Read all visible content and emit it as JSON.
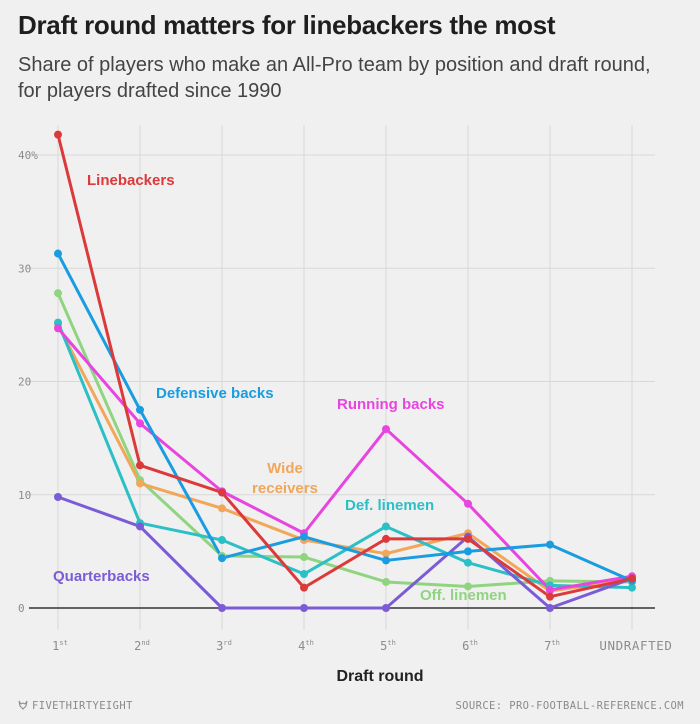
{
  "header": {
    "title": "Draft round matters for linebackers the most",
    "subtitle": "Share of players who make an All-Pro team by position and draft round, for players drafted since 1990"
  },
  "footer": {
    "brand": "FIVETHIRTYEIGHT",
    "source": "SOURCE: PRO-FOOTBALL-REFERENCE.COM"
  },
  "chart_data": {
    "type": "line",
    "xlabel": "Draft round",
    "ylabel": "",
    "categories": [
      "1st",
      "2nd",
      "3rd",
      "4th",
      "5th",
      "6th",
      "7th",
      "UNDRAFTED"
    ],
    "x_tick_labels": [
      {
        "base": "1",
        "sup": "st"
      },
      {
        "base": "2",
        "sup": "nd"
      },
      {
        "base": "3",
        "sup": "rd"
      },
      {
        "base": "4",
        "sup": "th"
      },
      {
        "base": "5",
        "sup": "th"
      },
      {
        "base": "6",
        "sup": "th"
      },
      {
        "base": "7",
        "sup": "th"
      },
      {
        "base": "UNDRAFTED",
        "sup": ""
      }
    ],
    "y_ticks": [
      {
        "value": 0,
        "label": "0"
      },
      {
        "value": 10,
        "label": "10"
      },
      {
        "value": 20,
        "label": "20"
      },
      {
        "value": 30,
        "label": "30"
      },
      {
        "value": 40,
        "label": "40%"
      }
    ],
    "ylim": [
      0,
      42
    ],
    "grid": true,
    "series": [
      {
        "name": "Off. linemen",
        "color": "#8fd47f",
        "values": [
          27.8,
          11.3,
          4.6,
          4.5,
          2.3,
          1.9,
          2.4,
          2.3
        ],
        "label_pos": [
          420,
          600
        ]
      },
      {
        "name": "Wide receivers",
        "color": "#f2a65a",
        "values": [
          25.0,
          11.0,
          8.8,
          6.0,
          4.8,
          6.6,
          1.5,
          2.5
        ],
        "label_lines": [
          "Wide",
          "receivers"
        ],
        "label_pos": [
          285,
          473
        ]
      },
      {
        "name": "Def. linemen",
        "color": "#2bbfc6",
        "values": [
          25.2,
          7.5,
          6.0,
          3.0,
          7.2,
          4.0,
          2.0,
          1.8
        ],
        "label_pos": [
          345,
          510
        ]
      },
      {
        "name": "Quarterbacks",
        "color": "#7b5cd6",
        "values": [
          9.8,
          7.2,
          0.0,
          0.0,
          0.0,
          6.3,
          0.0,
          2.6
        ],
        "label_pos": [
          53,
          581
        ]
      },
      {
        "name": "Running backs",
        "color": "#e845e0",
        "values": [
          24.7,
          16.3,
          10.3,
          6.6,
          15.8,
          9.2,
          1.6,
          2.8
        ],
        "label_pos": [
          337,
          409
        ]
      },
      {
        "name": "Defensive backs",
        "color": "#1a9ce0",
        "values": [
          31.3,
          17.5,
          4.4,
          6.3,
          4.2,
          5.0,
          5.6,
          2.4
        ],
        "label_pos": [
          156,
          398
        ]
      },
      {
        "name": "Linebackers",
        "color": "#dc3a3a",
        "values": [
          41.8,
          12.6,
          10.2,
          1.8,
          6.1,
          6.1,
          1.0,
          2.6
        ],
        "label_pos": [
          87,
          185
        ]
      }
    ]
  }
}
